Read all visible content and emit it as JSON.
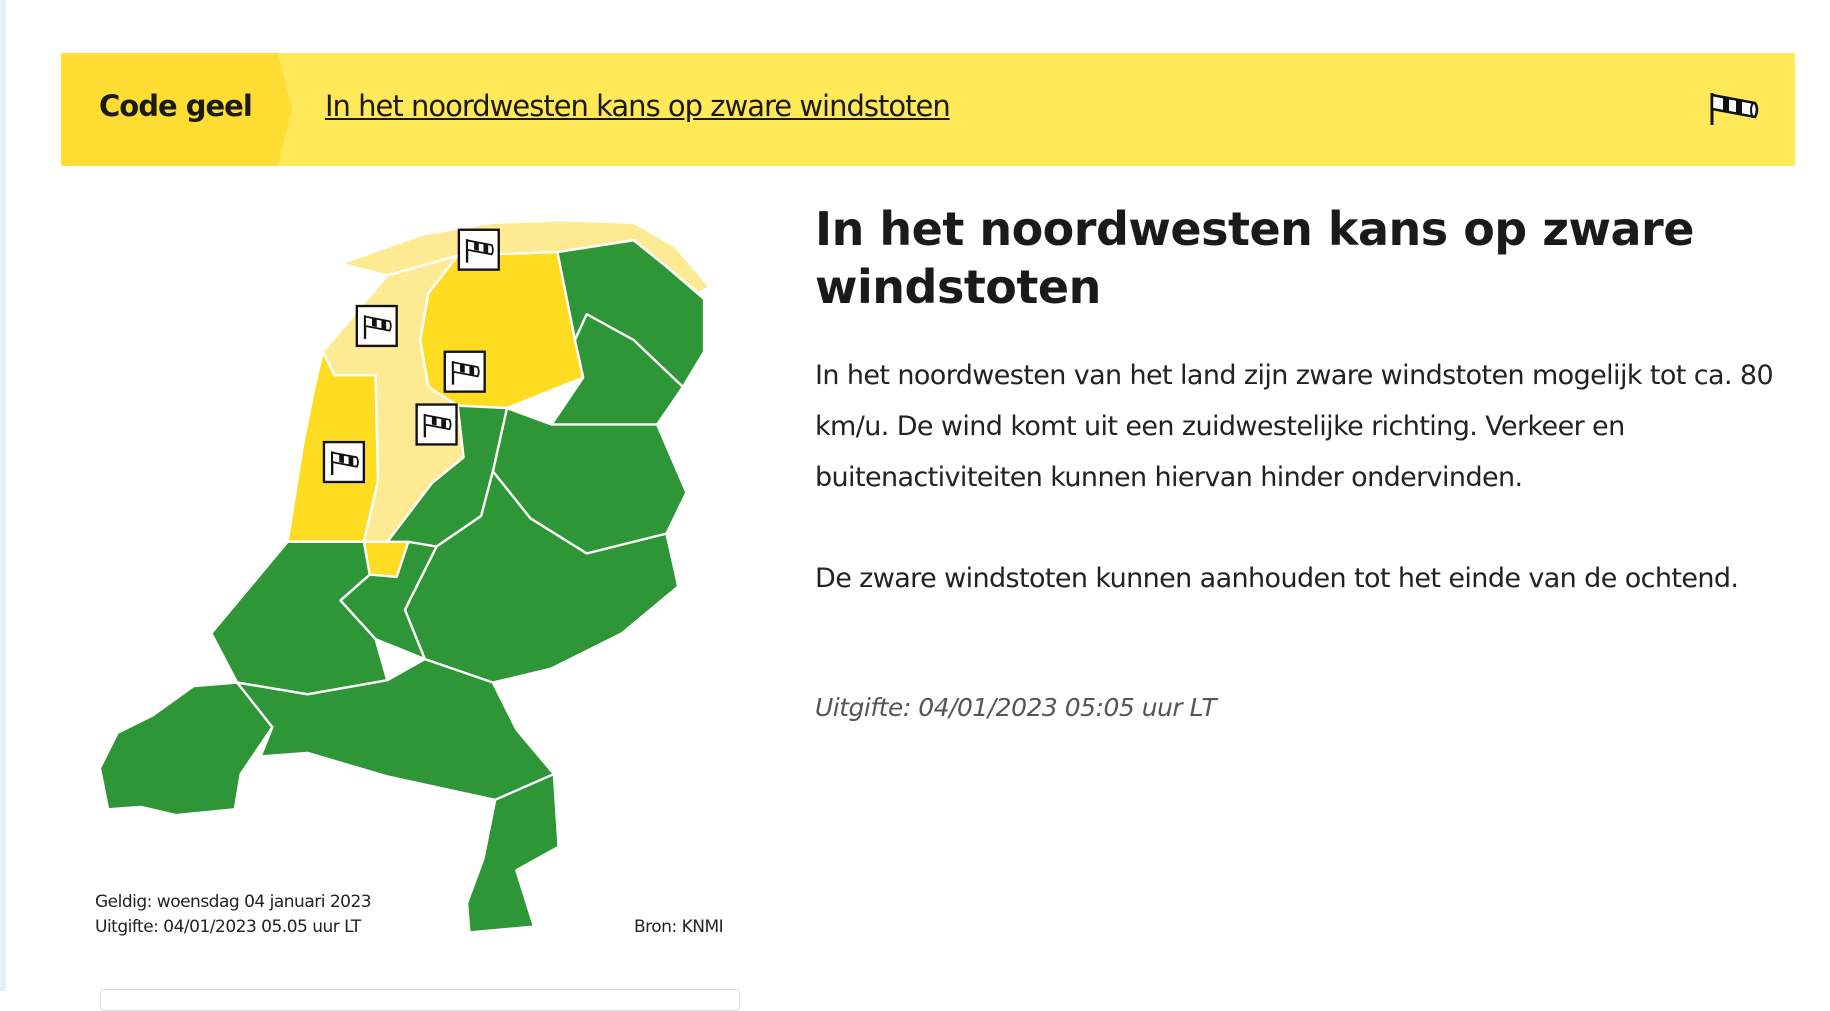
{
  "banner": {
    "level_label": "Code geel",
    "headline_link": "In het noordwesten kans op zware windstoten",
    "icon": "windsock-icon",
    "colors": {
      "level": "#ffdd33",
      "bar": "#ffe959"
    }
  },
  "map": {
    "valid": "Geldig: woensdag 04 januari 2023",
    "issued": "Uitgifte: 04/01/2023 05.05 uur LT",
    "source": "Bron: KNMI",
    "colors": {
      "green": "#2e9637",
      "yellow": "#fddc21",
      "light_yellow": "#fdea93"
    },
    "warning_icon": "windsock-icon"
  },
  "article": {
    "title": "In het noordwesten kans op zware windstoten",
    "paragraphs": [
      "In het noordwesten van het land zijn zware windstoten mogelijk tot ca. 80 km/u. De wind komt uit een zuidwestelijke richting. Verkeer en buitenactiviteiten kunnen hiervan hinder ondervinden.",
      "De zware windstoten kunnen aanhouden tot het einde van de ochtend."
    ],
    "issued": "Uitgifte: 04/01/2023 05:05 uur LT"
  }
}
